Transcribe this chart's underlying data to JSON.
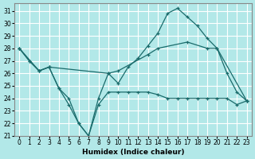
{
  "xlabel": "Humidex (Indice chaleur)",
  "background_color": "#b2e8e8",
  "grid_color": "#ffffff",
  "line_color": "#1a6b6b",
  "xlim": [
    -0.5,
    23.5
  ],
  "ylim": [
    21,
    31.6
  ],
  "yticks": [
    21,
    22,
    23,
    24,
    25,
    26,
    27,
    28,
    29,
    30,
    31
  ],
  "xticks": [
    0,
    1,
    2,
    3,
    4,
    5,
    6,
    7,
    8,
    9,
    10,
    11,
    12,
    13,
    14,
    15,
    16,
    17,
    18,
    19,
    20,
    21,
    22,
    23
  ],
  "series1_x": [
    0,
    1,
    2,
    3,
    4,
    5,
    6,
    7,
    8,
    9,
    10,
    11,
    12,
    13,
    14,
    15,
    16,
    17,
    18,
    19,
    20,
    21,
    22,
    23
  ],
  "series1_y": [
    28.0,
    27.0,
    26.2,
    26.5,
    24.8,
    23.5,
    22.0,
    21.0,
    23.5,
    24.5,
    24.5,
    24.5,
    24.5,
    24.5,
    24.3,
    24.0,
    24.0,
    24.0,
    24.0,
    24.0,
    24.0,
    24.0,
    23.5,
    23.8
  ],
  "series2_x": [
    0,
    1,
    2,
    3,
    4,
    5,
    6,
    7,
    8,
    9,
    10,
    11,
    12,
    13,
    14,
    15,
    16,
    17,
    18,
    19,
    20,
    21,
    22,
    23
  ],
  "series2_y": [
    28.0,
    27.0,
    26.2,
    26.5,
    24.8,
    24.0,
    22.0,
    21.0,
    24.0,
    26.0,
    25.2,
    26.5,
    27.2,
    28.2,
    29.2,
    30.8,
    31.2,
    30.5,
    29.8,
    28.8,
    28.0,
    26.0,
    24.5,
    23.8
  ],
  "series3_x": [
    0,
    2,
    3,
    9,
    10,
    13,
    14,
    17,
    19,
    20,
    23
  ],
  "series3_y": [
    28.0,
    26.2,
    26.5,
    26.0,
    26.2,
    27.5,
    28.0,
    28.5,
    28.0,
    28.0,
    23.8
  ]
}
